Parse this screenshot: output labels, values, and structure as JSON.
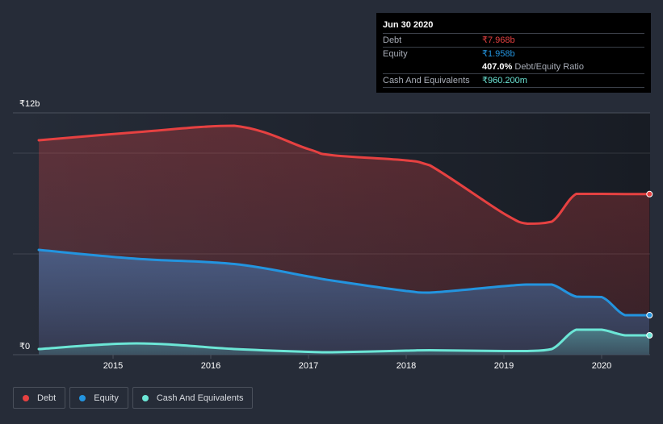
{
  "tooltip": {
    "date": "Jun 30 2020",
    "rows": [
      {
        "label": "Debt",
        "value": "₹7.968b",
        "color": "#e64141"
      },
      {
        "label": "Equity",
        "value": "₹1.958b",
        "color": "#2394df"
      },
      {
        "label": "",
        "ratio_value": "407.0%",
        "ratio_label": "Debt/Equity Ratio"
      },
      {
        "label": "Cash And Equivalents",
        "value": "₹960.200m",
        "color": "#6ce6d6"
      }
    ]
  },
  "legend": [
    {
      "label": "Debt",
      "color": "#e64141"
    },
    {
      "label": "Equity",
      "color": "#2394df"
    },
    {
      "label": "Cash And Equivalents",
      "color": "#6ce6d6"
    }
  ],
  "chart_data": {
    "type": "area",
    "title": "",
    "xlabel": "",
    "ylabel": "",
    "currency_symbol": "₹",
    "ylim": [
      0,
      12
    ],
    "y_unit": "b",
    "y_tick_labels": [
      "₹0",
      "₹12b"
    ],
    "y_gridlines": [
      0,
      5,
      10,
      12
    ],
    "xlim": [
      2014.24,
      2020.49
    ],
    "x_ticks": [
      2015,
      2016,
      2017,
      2018,
      2019,
      2020
    ],
    "x_tick_labels": [
      "2015",
      "2016",
      "2017",
      "2018",
      "2019",
      "2020"
    ],
    "x": [
      2014.24,
      2015.24,
      2016.24,
      2017.0,
      2017.24,
      2018.0,
      2018.24,
      2019.0,
      2019.24,
      2019.49,
      2019.74,
      2020.0,
      2020.24,
      2020.49
    ],
    "series": [
      {
        "name": "Debt",
        "color": "#e64141",
        "values": [
          10.64,
          11.04,
          11.36,
          10.2,
          9.9,
          9.64,
          9.4,
          7.0,
          6.5,
          6.6,
          7.98,
          7.98,
          7.97,
          7.968
        ]
      },
      {
        "name": "Equity",
        "color": "#2394df",
        "values": [
          5.2,
          4.76,
          4.5,
          3.88,
          3.68,
          3.16,
          3.08,
          3.4,
          3.48,
          3.48,
          2.88,
          2.86,
          1.96,
          1.958
        ]
      },
      {
        "name": "Cash And Equivalents",
        "color": "#6ce6d6",
        "values": [
          0.28,
          0.56,
          0.28,
          0.14,
          0.12,
          0.2,
          0.22,
          0.18,
          0.18,
          0.28,
          1.24,
          1.24,
          0.96,
          0.9602
        ]
      }
    ],
    "legend_position": "bottom-left",
    "grid": true
  }
}
